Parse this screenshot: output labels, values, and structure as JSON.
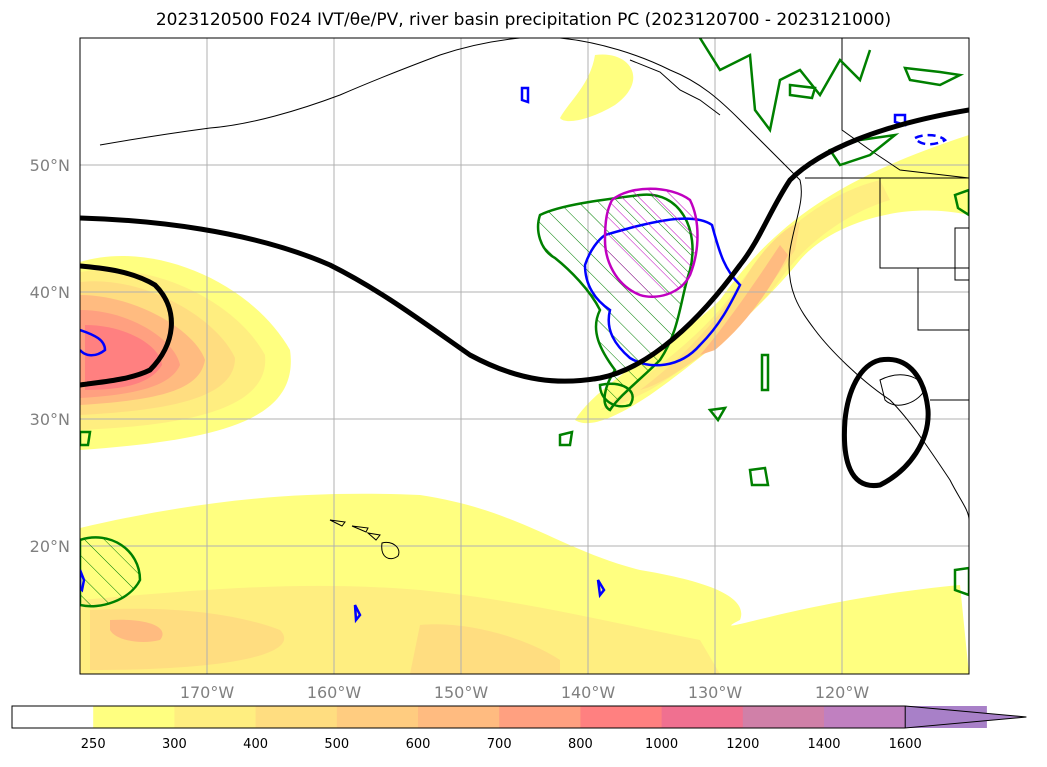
{
  "title": "2023120500 F024 IVT/θe/PV, river basin precipitation PC (2023120700 - 2023121000)",
  "map": {
    "lon_range": [
      -180,
      -110
    ],
    "lat_range": [
      10,
      60
    ],
    "lat_labels": [
      {
        "lat": 50,
        "text": "50°N"
      },
      {
        "lat": 40,
        "text": "40°N"
      },
      {
        "lat": 30,
        "text": "30°N"
      },
      {
        "lat": 20,
        "text": "20°N"
      }
    ],
    "lon_labels": [
      {
        "lon": -170,
        "text": "170°W"
      },
      {
        "lon": -160,
        "text": "160°W"
      },
      {
        "lon": -150,
        "text": "150°W"
      },
      {
        "lon": -140,
        "text": "140°W"
      },
      {
        "lon": -130,
        "text": "130°W"
      },
      {
        "lon": -120,
        "text": "120°W"
      }
    ]
  },
  "colorbar": {
    "levels": [
      "250",
      "300",
      "400",
      "500",
      "600",
      "700",
      "800",
      "1000",
      "1200",
      "1400",
      "1600"
    ],
    "colors": [
      "#ffffff",
      "#ffff80",
      "#ffee80",
      "#ffdd80",
      "#ffcc80",
      "#ffbb80",
      "#ffa080",
      "#ff8080",
      "#f07090",
      "#d080a8",
      "#c080c0",
      "#a880c8"
    ]
  },
  "colors": {
    "ivt_fill_low": "#ffff80",
    "ivt_fill_mid": "#ffd080",
    "ivt_fill_high": "#ff8080",
    "theta_e_contour": "#000000",
    "pv_contour_pos": "#008000",
    "pv_contour_neg": "#0000ff",
    "precip_contour": "#c000c0"
  }
}
